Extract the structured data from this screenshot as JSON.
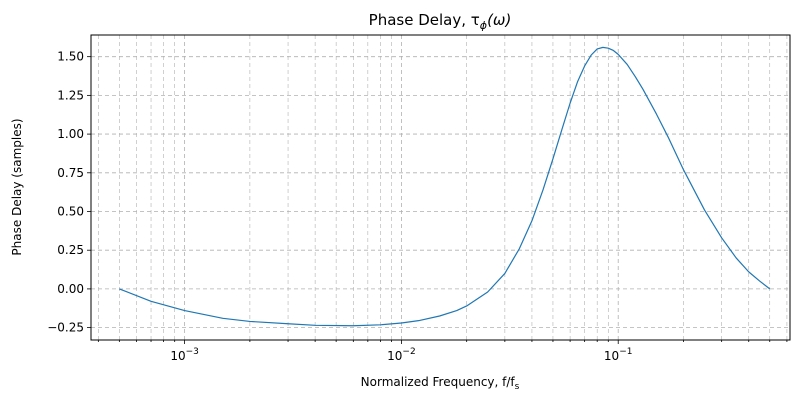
{
  "chart_data": {
    "type": "line",
    "title": "Phase Delay, τ",
    "title_subscript": "ϕ",
    "title_suffix": "(ω)",
    "xlabel": "Normalized Frequency, f/f",
    "xlabel_subscript": "s",
    "ylabel": "Phase Delay (samples)",
    "xscale": "log",
    "xlim": [
      0.00037,
      0.62
    ],
    "ylim": [
      -0.33,
      1.64
    ],
    "grid": true,
    "grid_style": "dashed",
    "line_color": "#1f77b4",
    "x_ticks": [
      {
        "value": 0.001,
        "base": "10",
        "exp": "−3"
      },
      {
        "value": 0.01,
        "base": "10",
        "exp": "−2"
      },
      {
        "value": 0.1,
        "base": "10",
        "exp": "−1"
      }
    ],
    "y_ticks": [
      {
        "value": -0.25,
        "label": "−0.25"
      },
      {
        "value": 0.0,
        "label": "0.00"
      },
      {
        "value": 0.25,
        "label": "0.25"
      },
      {
        "value": 0.5,
        "label": "0.50"
      },
      {
        "value": 0.75,
        "label": "0.75"
      },
      {
        "value": 1.0,
        "label": "1.00"
      },
      {
        "value": 1.25,
        "label": "1.25"
      },
      {
        "value": 1.5,
        "label": "1.50"
      }
    ],
    "series": [
      {
        "x": [
          0.0005,
          0.0007,
          0.001,
          0.0015,
          0.002,
          0.003,
          0.004,
          0.006,
          0.008,
          0.01,
          0.012,
          0.015,
          0.018,
          0.02,
          0.025,
          0.03,
          0.035,
          0.04,
          0.045,
          0.05,
          0.055,
          0.06,
          0.065,
          0.07,
          0.075,
          0.08,
          0.085,
          0.09,
          0.095,
          0.1,
          0.11,
          0.12,
          0.13,
          0.15,
          0.17,
          0.2,
          0.25,
          0.3,
          0.35,
          0.4,
          0.45,
          0.5
        ],
        "y": [
          0.0,
          -0.08,
          -0.14,
          -0.19,
          -0.21,
          -0.225,
          -0.235,
          -0.238,
          -0.232,
          -0.22,
          -0.205,
          -0.175,
          -0.14,
          -0.11,
          -0.02,
          0.1,
          0.26,
          0.44,
          0.64,
          0.84,
          1.03,
          1.2,
          1.34,
          1.44,
          1.51,
          1.55,
          1.56,
          1.555,
          1.54,
          1.515,
          1.45,
          1.37,
          1.29,
          1.13,
          0.98,
          0.77,
          0.51,
          0.33,
          0.2,
          0.11,
          0.05,
          0.0
        ]
      }
    ]
  }
}
